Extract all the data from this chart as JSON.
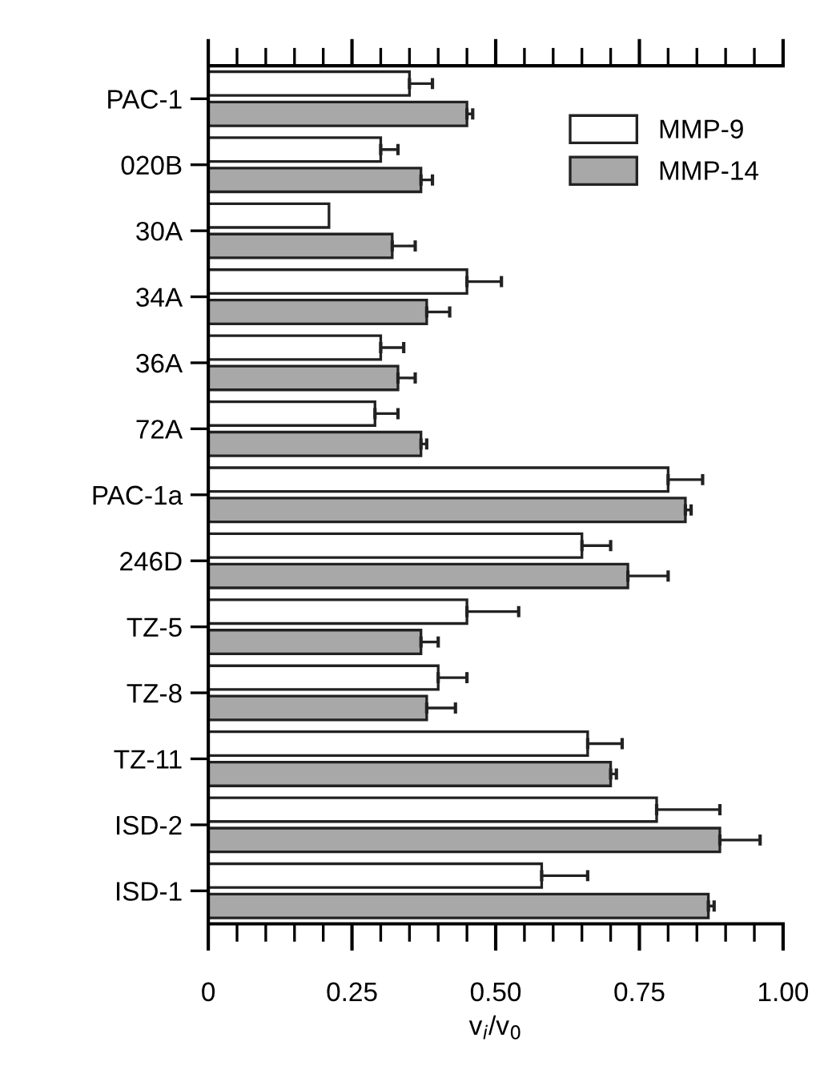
{
  "chart_data": {
    "type": "bar",
    "orientation": "horizontal",
    "xlabel": "v$_{i}$/v$_{0}$",
    "categories": [
      "PAC-1",
      "020B",
      "30A",
      "34A",
      "36A",
      "72A",
      "PAC-1a",
      "246D",
      "TZ-5",
      "TZ-8",
      "TZ-11",
      "ISD-2",
      "ISD-1"
    ],
    "series": [
      {
        "name": "MMP-9",
        "color": "#ffffff",
        "values": [
          0.35,
          0.3,
          0.21,
          0.45,
          0.3,
          0.29,
          0.8,
          0.65,
          0.45,
          0.4,
          0.66,
          0.78,
          0.58
        ],
        "errors": [
          [
            0.35,
            0.39
          ],
          [
            0.3,
            0.33
          ],
          null,
          [
            0.45,
            0.51
          ],
          [
            0.3,
            0.34
          ],
          [
            0.29,
            0.33
          ],
          [
            0.8,
            0.86
          ],
          [
            0.65,
            0.7
          ],
          [
            0.45,
            0.54
          ],
          [
            0.4,
            0.45
          ],
          [
            0.66,
            0.72
          ],
          [
            0.78,
            0.89
          ],
          [
            0.58,
            0.66
          ]
        ]
      },
      {
        "name": "MMP-14",
        "color": "#a8a8a8",
        "values": [
          0.45,
          0.37,
          0.32,
          0.38,
          0.33,
          0.37,
          0.83,
          0.73,
          0.37,
          0.38,
          0.7,
          0.89,
          0.87
        ],
        "errors": [
          [
            0.45,
            0.46
          ],
          [
            0.37,
            0.39
          ],
          [
            0.32,
            0.36
          ],
          [
            0.38,
            0.42
          ],
          [
            0.33,
            0.36
          ],
          [
            0.37,
            0.38
          ],
          [
            0.83,
            0.84
          ],
          [
            0.73,
            0.8
          ],
          [
            0.37,
            0.4
          ],
          [
            0.38,
            0.43
          ],
          [
            0.7,
            0.71
          ],
          [
            0.89,
            0.96
          ],
          [
            0.87,
            0.88
          ]
        ]
      }
    ],
    "xlim": [
      0,
      1
    ],
    "xticks": [
      0,
      {
        "value": 0.05,
        "label": null
      },
      {
        "value": 0.1,
        "label": null
      },
      {
        "value": 0.15,
        "label": null
      },
      {
        "value": 0.2,
        "label": null
      },
      {
        "value": 0.25,
        "label": "0.25"
      },
      {
        "value": 0.3,
        "label": null
      },
      {
        "value": 0.35,
        "label": null
      },
      {
        "value": 0.4,
        "label": null
      },
      {
        "value": 0.45,
        "label": null
      },
      {
        "value": 0.5,
        "label": "0.50"
      },
      {
        "value": 0.55,
        "label": null
      },
      {
        "value": 0.6,
        "label": null
      },
      {
        "value": 0.65,
        "label": null
      },
      {
        "value": 0.7,
        "label": null
      },
      {
        "value": 0.75,
        "label": "0.75"
      },
      {
        "value": 0.8,
        "label": null
      },
      {
        "value": 0.85,
        "label": null
      },
      {
        "value": 0.9,
        "label": null
      },
      {
        "value": 0.95,
        "label": null
      },
      {
        "value": 1,
        "label": "1.00"
      }
    ],
    "legend": "top right",
    "grid": false
  }
}
